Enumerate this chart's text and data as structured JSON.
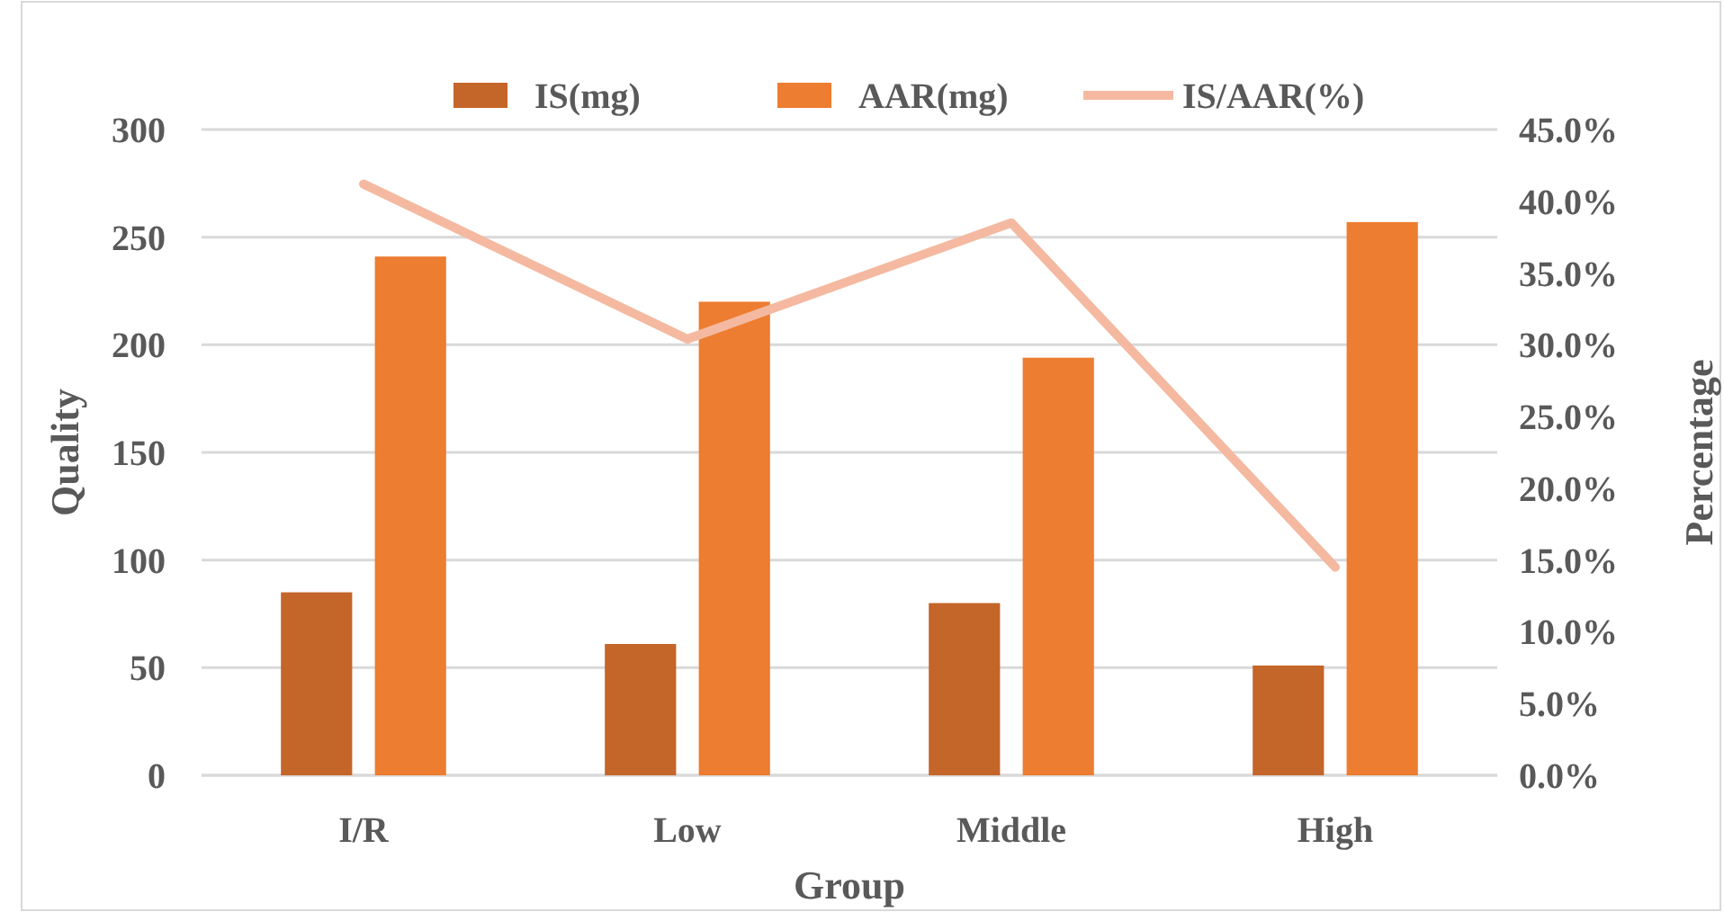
{
  "chart_data": {
    "type": "bar",
    "xlabel": "Group",
    "ylabel": "Quality",
    "y2label": "Percentage",
    "categories": [
      "I/R",
      "Low",
      "Middle",
      "High"
    ],
    "series": [
      {
        "name": "IS(mg)",
        "color": "#c4652a",
        "values": [
          85,
          61,
          80,
          51
        ]
      },
      {
        "name": "AAR(mg)",
        "color": "#ed7d31",
        "values": [
          241,
          220,
          194,
          257
        ]
      },
      {
        "name": "IS/AAR(%)",
        "type": "line",
        "axis": "y2",
        "color": "#f4b9a0",
        "values": [
          41.2,
          30.4,
          38.5,
          14.5
        ]
      }
    ],
    "ylim": [
      0,
      300
    ],
    "yticks": [
      0,
      50,
      100,
      150,
      200,
      250,
      300
    ],
    "y2lim": [
      0,
      45
    ],
    "y2ticks": [
      {
        "value": 0,
        "label": "0.0%"
      },
      {
        "value": 5,
        "label": "5.0%"
      },
      {
        "value": 10,
        "label": "10.0%"
      },
      {
        "value": 15,
        "label": "15.0%"
      },
      {
        "value": 20,
        "label": "20.0%"
      },
      {
        "value": 25,
        "label": "25.0%"
      },
      {
        "value": 30,
        "label": "30.0%"
      },
      {
        "value": 35,
        "label": "35.0%"
      },
      {
        "value": 40,
        "label": "40.0%"
      },
      {
        "value": 45,
        "label": "45.0%"
      }
    ],
    "grid": "y",
    "legend": "top"
  }
}
